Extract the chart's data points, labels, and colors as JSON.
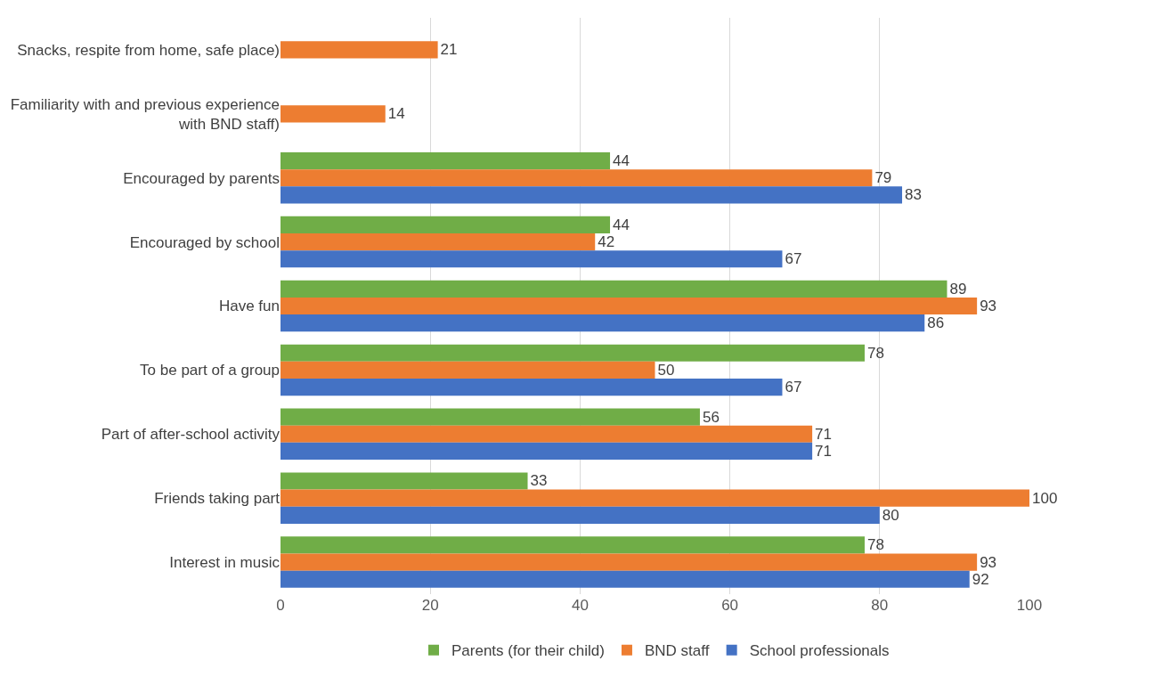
{
  "chart_data": {
    "type": "bar",
    "orientation": "horizontal",
    "categories": [
      "Snacks, respite from home, safe place)",
      "Familiarity with and previous experience with BND staff)",
      "Encouraged by parents",
      "Encouraged by school",
      "Have fun",
      "To be part of a group",
      "Part of after-school activity",
      "Friends taking part",
      "Interest in music"
    ],
    "series": [
      {
        "name": "Parents (for their child)",
        "color": "#70ad47",
        "values": [
          null,
          null,
          44,
          44,
          89,
          78,
          56,
          33,
          78
        ]
      },
      {
        "name": "BND staff",
        "color": "#ed7d31",
        "values": [
          21,
          14,
          79,
          42,
          93,
          50,
          71,
          100,
          93
        ]
      },
      {
        "name": "School professionals",
        "color": "#4472c4",
        "values": [
          null,
          null,
          83,
          67,
          86,
          67,
          71,
          80,
          92
        ]
      }
    ],
    "xlim": [
      0,
      100
    ],
    "xticks": [
      0,
      20,
      40,
      60,
      80,
      100
    ],
    "grid": "x",
    "legend": "bottom",
    "data_labels": true
  }
}
